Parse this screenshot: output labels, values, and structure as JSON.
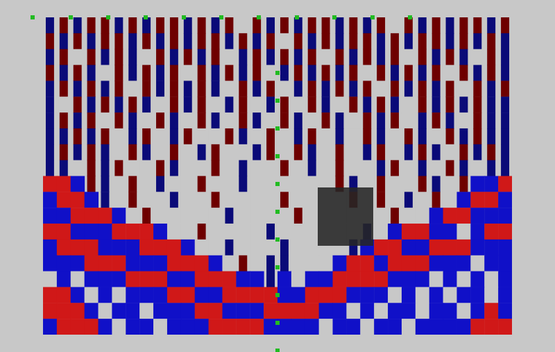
{
  "chart_data": {
    "type": "heatmap",
    "tick_labels": false,
    "zlim": [
      -2,
      2
    ],
    "cells": [
      [
        -1,
        1,
        -1,
        1,
        1,
        -1,
        1,
        -1,
        1,
        1,
        -1,
        1,
        -1,
        1,
        0,
        1,
        -1,
        1,
        -1,
        1,
        1,
        -1,
        1,
        -1,
        1,
        0,
        1,
        -1,
        1,
        -1,
        1,
        1,
        -1,
        1
      ],
      [
        1,
        -1,
        1,
        -1,
        1,
        1,
        -1,
        1,
        -1,
        1,
        -1,
        1,
        1,
        -1,
        1,
        -1,
        1,
        0,
        1,
        -1,
        1,
        -1,
        1,
        1,
        -1,
        1,
        -1,
        1,
        1,
        -1,
        1,
        -1,
        1,
        -1
      ],
      [
        -1,
        1,
        0,
        1,
        -1,
        1,
        -1,
        0,
        1,
        -1,
        1,
        -1,
        1,
        0,
        -1,
        1,
        -1,
        1,
        -1,
        1,
        0,
        1,
        -1,
        1,
        -1,
        1,
        0,
        1,
        -1,
        1,
        -1,
        0,
        1,
        -1
      ],
      [
        1,
        -1,
        1,
        -1,
        0,
        1,
        -1,
        1,
        -1,
        1,
        0,
        1,
        -1,
        1,
        -1,
        1,
        0,
        -1,
        1,
        -1,
        1,
        -1,
        1,
        0,
        1,
        -1,
        1,
        -1,
        1,
        0,
        1,
        -1,
        1,
        -1
      ],
      [
        -1,
        1,
        -1,
        1,
        -1,
        1,
        0,
        1,
        -1,
        1,
        -1,
        1,
        -1,
        0,
        1,
        -1,
        1,
        0,
        -1,
        1,
        -1,
        1,
        -1,
        1,
        0,
        1,
        -1,
        1,
        -1,
        1,
        0,
        1,
        -1,
        1
      ],
      [
        -1,
        0,
        1,
        -1,
        1,
        -1,
        1,
        -1,
        0,
        1,
        -1,
        1,
        0,
        -1,
        1,
        0,
        -1,
        1,
        0,
        1,
        -1,
        0,
        1,
        -1,
        1,
        -1,
        0,
        1,
        -1,
        1,
        -1,
        1,
        -1,
        -1
      ],
      [
        -1,
        1,
        -1,
        1,
        0,
        1,
        -1,
        0,
        1,
        -1,
        0,
        1,
        -1,
        0,
        1,
        -1,
        0,
        1,
        -1,
        0,
        1,
        -1,
        0,
        1,
        -1,
        1,
        0,
        -1,
        1,
        -1,
        0,
        1,
        -1,
        -1
      ],
      [
        -1,
        -1,
        1,
        -1,
        1,
        0,
        -1,
        1,
        0,
        -1,
        1,
        0,
        0,
        1,
        -1,
        0,
        1,
        0,
        -1,
        1,
        0,
        -1,
        0,
        1,
        -1,
        0,
        1,
        -1,
        0,
        1,
        -1,
        1,
        -1,
        -1
      ],
      [
        -1,
        1,
        -1,
        1,
        -1,
        0,
        1,
        -1,
        0,
        1,
        0,
        -1,
        1,
        0,
        0,
        -1,
        1,
        0,
        1,
        -1,
        0,
        1,
        0,
        -1,
        1,
        0,
        -1,
        1,
        -1,
        0,
        1,
        -1,
        1,
        -1
      ],
      [
        -1,
        -1,
        0,
        1,
        -1,
        1,
        0,
        0,
        1,
        -1,
        0,
        0,
        1,
        0,
        -1,
        0,
        0,
        1,
        0,
        -1,
        0,
        1,
        0,
        0,
        -1,
        1,
        0,
        -1,
        0,
        1,
        -1,
        0,
        -1,
        -1
      ],
      [
        2,
        2,
        -2,
        1,
        -1,
        0,
        1,
        0,
        -1,
        0,
        0,
        1,
        0,
        0,
        -1,
        0,
        0,
        0,
        0,
        0,
        0,
        1,
        -1,
        0,
        1,
        0,
        0,
        1,
        -1,
        0,
        1,
        -2,
        -2,
        2
      ],
      [
        -2,
        2,
        2,
        -2,
        -1,
        0,
        1,
        0,
        0,
        -1,
        0,
        0,
        1,
        0,
        0,
        0,
        0,
        1,
        0,
        0,
        0,
        0,
        1,
        0,
        1,
        0,
        -1,
        0,
        1,
        0,
        -2,
        2,
        2,
        -2
      ],
      [
        -2,
        -2,
        2,
        2,
        2,
        -2,
        0,
        1,
        0,
        0,
        0,
        0,
        0,
        -1,
        0,
        0,
        0,
        0,
        1,
        0,
        0,
        0,
        0,
        0,
        0,
        1,
        0,
        0,
        -2,
        2,
        2,
        -2,
        -2,
        -2
      ],
      [
        2,
        2,
        -2,
        -2,
        -2,
        2,
        2,
        2,
        -2,
        0,
        0,
        1,
        0,
        0,
        0,
        0,
        -1,
        0,
        0,
        0,
        0,
        0,
        0,
        -1,
        0,
        -2,
        2,
        2,
        -2,
        -2,
        0,
        -2,
        2,
        2
      ],
      [
        -2,
        2,
        2,
        2,
        -2,
        -2,
        -2,
        2,
        2,
        2,
        -2,
        0,
        0,
        -1,
        0,
        0,
        0,
        -1,
        0,
        0,
        0,
        0,
        -1,
        -2,
        2,
        2,
        -2,
        -2,
        2,
        2,
        2,
        -2,
        -2,
        -2
      ],
      [
        -2,
        -2,
        -2,
        2,
        2,
        2,
        -2,
        -2,
        -2,
        2,
        2,
        2,
        -2,
        0,
        1,
        0,
        -1,
        -1,
        0,
        0,
        0,
        -2,
        2,
        2,
        -2,
        2,
        2,
        2,
        -2,
        -2,
        -2,
        0,
        -2,
        -2
      ],
      [
        0,
        -2,
        0,
        -2,
        -2,
        -2,
        2,
        2,
        2,
        -2,
        -2,
        2,
        2,
        2,
        -2,
        -2,
        -1,
        -2,
        0,
        -2,
        -2,
        2,
        2,
        2,
        2,
        -2,
        -2,
        -2,
        0,
        -2,
        0,
        -2,
        0,
        -2
      ],
      [
        2,
        2,
        -2,
        0,
        -2,
        0,
        -2,
        -2,
        -2,
        2,
        2,
        -2,
        -2,
        2,
        2,
        2,
        2,
        -2,
        -2,
        2,
        2,
        2,
        -2,
        -2,
        -2,
        0,
        -2,
        0,
        -2,
        0,
        -2,
        -2,
        0,
        -2
      ],
      [
        2,
        2,
        2,
        -2,
        0,
        -2,
        -2,
        0,
        -2,
        -2,
        -2,
        2,
        2,
        -2,
        -2,
        -2,
        2,
        2,
        2,
        2,
        -2,
        -2,
        0,
        -2,
        0,
        -2,
        -2,
        0,
        -2,
        -2,
        0,
        -2,
        2,
        -2
      ],
      [
        -2,
        2,
        2,
        2,
        -2,
        0,
        -2,
        -2,
        0,
        -2,
        -2,
        -2,
        2,
        2,
        2,
        2,
        -2,
        -2,
        -2,
        -2,
        0,
        -2,
        -2,
        0,
        -2,
        -2,
        0,
        -2,
        -2,
        -2,
        -2,
        2,
        2,
        2
      ]
    ]
  }
}
